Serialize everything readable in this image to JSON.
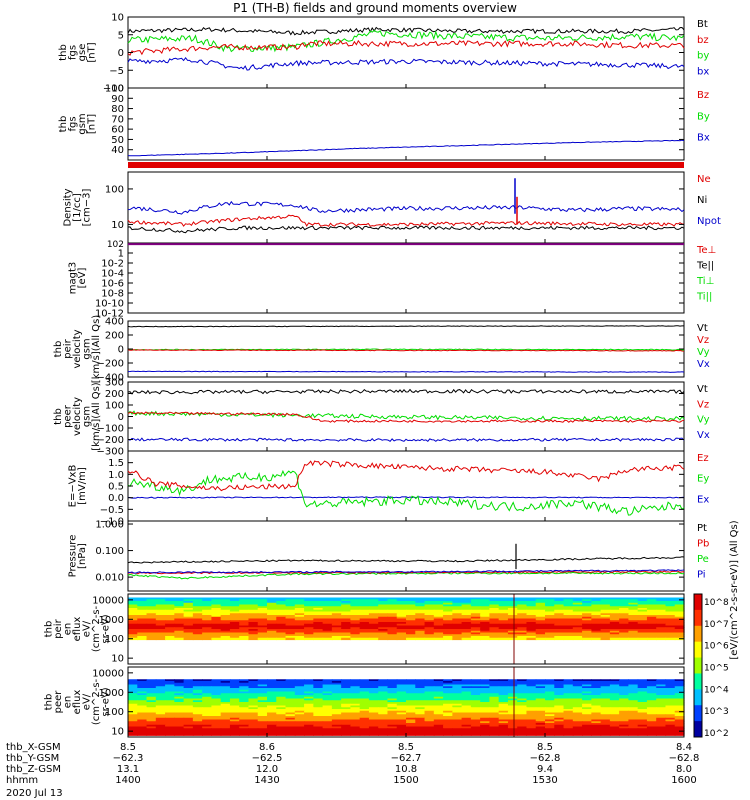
{
  "title": "P1 (TH-B) fields and ground moments overview",
  "colors": {
    "black": "#000000",
    "red": "#e00000",
    "green": "#00dd00",
    "blue": "#0000cc"
  },
  "chart_data": [
    {
      "type": "line",
      "panel": "fgs_gse",
      "ylabel_lines": [
        "thb",
        "fgs",
        "gse",
        "[nT]"
      ],
      "ylim": [
        -10,
        10
      ],
      "yticks": [
        {
          "v": 10,
          "l": "10"
        },
        {
          "v": 5,
          "l": "5"
        },
        {
          "v": 0,
          "l": "0"
        },
        {
          "v": -5,
          "l": "−5"
        },
        {
          "v": -10,
          "l": "−10"
        }
      ],
      "legend": [
        {
          "label": "Bt",
          "color": "black"
        },
        {
          "label": "bz",
          "color": "red"
        },
        {
          "label": "by",
          "color": "green"
        },
        {
          "label": "bx",
          "color": "blue"
        }
      ],
      "series": [
        {
          "color": "black",
          "x": [
            0,
            0.15,
            0.3,
            0.45,
            0.6,
            0.75,
            0.9,
            1
          ],
          "values": [
            6,
            6.5,
            5.5,
            6.5,
            6,
            6,
            6,
            6.5
          ],
          "noise": 0.6
        },
        {
          "color": "green",
          "x": [
            0,
            0.12,
            0.18,
            0.3,
            0.45,
            0.6,
            0.75,
            0.9,
            1
          ],
          "values": [
            3.5,
            4,
            1,
            1.5,
            5.5,
            4.5,
            4,
            4.5,
            4
          ],
          "noise": 1
        },
        {
          "color": "red",
          "x": [
            0,
            0.15,
            0.3,
            0.32,
            0.6,
            0.8,
            0.9,
            1
          ],
          "values": [
            0,
            1.5,
            1.5,
            2.5,
            2.5,
            2.5,
            2,
            2
          ],
          "noise": 0.8
        },
        {
          "color": "blue",
          "x": [
            0,
            0.12,
            0.2,
            0.3,
            0.5,
            0.7,
            0.9,
            1
          ],
          "values": [
            -2.5,
            -2,
            -4.5,
            -3,
            -2.5,
            -3,
            -3.5,
            -4
          ],
          "noise": 0.7
        }
      ]
    },
    {
      "type": "line",
      "panel": "fgs_gsm",
      "ylabel_lines": [
        "thb",
        "fgs",
        "gsm",
        "[nT]"
      ],
      "ylim": [
        30,
        100
      ],
      "yticks": [
        {
          "v": 100,
          "l": "100"
        },
        {
          "v": 90,
          "l": "90"
        },
        {
          "v": 80,
          "l": "80"
        },
        {
          "v": 70,
          "l": "70"
        },
        {
          "v": 60,
          "l": "60"
        },
        {
          "v": 50,
          "l": "50"
        },
        {
          "v": 40,
          "l": "40"
        }
      ],
      "legend": [
        {
          "label": "Bz",
          "color": "red"
        },
        {
          "label": "By",
          "color": "green"
        },
        {
          "label": "Bx",
          "color": "blue"
        }
      ],
      "series": [
        {
          "color": "blue",
          "x": [
            0,
            0.2,
            0.4,
            0.6,
            0.8,
            1
          ],
          "values": [
            34,
            37,
            41,
            44,
            47,
            49
          ],
          "noise": 0.3
        }
      ]
    },
    {
      "type": "line",
      "panel": "density",
      "log": true,
      "ylabel_lines": [
        "Density",
        "[1/cc]",
        "[cm−3]"
      ],
      "ylim": [
        3,
        300
      ],
      "yticks": [
        {
          "v": 100,
          "l": "100"
        },
        {
          "v": 10,
          "l": "10"
        }
      ],
      "legend": [
        {
          "label": "Ne",
          "color": "red"
        },
        {
          "label": "Ni",
          "color": "black"
        },
        {
          "label": "Npot",
          "color": "blue"
        }
      ],
      "series": [
        {
          "color": "blue",
          "x": [
            0,
            0.1,
            0.18,
            0.3,
            0.34,
            0.5,
            0.7,
            0.8,
            0.9,
            1
          ],
          "values": [
            30,
            22,
            40,
            35,
            24,
            28,
            30,
            25,
            28,
            26
          ],
          "noise": 0.12
        },
        {
          "color": "red",
          "x": [
            0,
            0.1,
            0.2,
            0.3,
            0.32,
            0.5,
            0.7,
            0.9,
            1
          ],
          "values": [
            12,
            10,
            14,
            17,
            10,
            10,
            11,
            10,
            10
          ],
          "noise": 0.1
        },
        {
          "color": "black",
          "x": [
            0,
            0.1,
            0.2,
            0.3,
            0.5,
            0.7,
            0.9,
            1
          ],
          "values": [
            8,
            6.5,
            8,
            8,
            8,
            8,
            8,
            8
          ],
          "noise": 0.1
        }
      ]
    },
    {
      "type": "line",
      "panel": "magt3",
      "log": true,
      "ylabel_lines": [
        "magt3",
        "[eV]"
      ],
      "ylim": [
        1e-12,
        100
      ],
      "yticks": [
        {
          "v": 1,
          "l": "1"
        },
        {
          "v": 0.01,
          "l": "10-2"
        },
        {
          "v": 0.0001,
          "l": "10-4"
        },
        {
          "v": 1e-06,
          "l": "10-6"
        },
        {
          "v": 1e-08,
          "l": "10-8"
        },
        {
          "v": 1e-10,
          "l": "10-10"
        },
        {
          "v": 1e-12,
          "l": "10-12"
        }
      ],
      "top_tick_label": "102",
      "legend": [
        {
          "label": "Te⊥",
          "color": "red"
        },
        {
          "label": "Te||",
          "color": "black"
        },
        {
          "label": "Ti⊥",
          "color": "green"
        },
        {
          "label": "Ti||",
          "color": "green"
        }
      ],
      "series": []
    },
    {
      "type": "line",
      "panel": "vel_gsm",
      "ylabel_lines": [
        "thb",
        "peir",
        "velocity",
        "gsm",
        "[km/s](All Qs)"
      ],
      "ylim": [
        -400,
        400
      ],
      "yticks": [
        {
          "v": 400,
          "l": "400"
        },
        {
          "v": 200,
          "l": "200"
        },
        {
          "v": 0,
          "l": "0"
        },
        {
          "v": -200,
          "l": "−200"
        },
        {
          "v": -400,
          "l": "−400"
        }
      ],
      "legend": [
        {
          "label": "Vt",
          "color": "black"
        },
        {
          "label": "Vz",
          "color": "red"
        },
        {
          "label": "Vy",
          "color": "green"
        },
        {
          "label": "Vx",
          "color": "blue"
        }
      ],
      "series": [
        {
          "color": "black",
          "x": [
            0,
            0.5,
            1
          ],
          "values": [
            320,
            325,
            330
          ],
          "noise": 4
        },
        {
          "color": "green",
          "x": [
            0,
            0.5,
            1
          ],
          "values": [
            -10,
            -5,
            -10
          ],
          "noise": 6
        },
        {
          "color": "red",
          "x": [
            0,
            0.5,
            1
          ],
          "values": [
            -15,
            -20,
            -25
          ],
          "noise": 5
        },
        {
          "color": "blue",
          "x": [
            0,
            0.5,
            1
          ],
          "values": [
            -320,
            -325,
            -330
          ],
          "noise": 4
        }
      ]
    },
    {
      "type": "line",
      "panel": "vel_gsm_peer",
      "ylabel_lines": [
        "thb",
        "peer",
        "velocity",
        "gsm",
        "[km/s](All Qs)"
      ],
      "ylim": [
        -300,
        300
      ],
      "yticks": [
        {
          "v": 300,
          "l": "300"
        },
        {
          "v": 200,
          "l": "200"
        },
        {
          "v": 100,
          "l": "100"
        },
        {
          "v": 0,
          "l": "0"
        },
        {
          "v": -100,
          "l": "−100"
        },
        {
          "v": -200,
          "l": "−200"
        },
        {
          "v": -300,
          "l": "−300"
        }
      ],
      "legend": [
        {
          "label": "Vt",
          "color": "black"
        },
        {
          "label": "Vz",
          "color": "red"
        },
        {
          "label": "Vy",
          "color": "green"
        },
        {
          "label": "Vx",
          "color": "blue"
        }
      ],
      "series": [
        {
          "color": "black",
          "x": [
            0,
            0.5,
            1
          ],
          "values": [
            210,
            220,
            215
          ],
          "noise": 15
        },
        {
          "color": "green",
          "x": [
            0,
            0.3,
            0.6,
            1
          ],
          "values": [
            30,
            10,
            -10,
            -20
          ],
          "noise": 18
        },
        {
          "color": "red",
          "x": [
            0,
            0.3,
            0.35,
            1
          ],
          "values": [
            30,
            20,
            -40,
            -40
          ],
          "noise": 10
        },
        {
          "color": "blue",
          "x": [
            0,
            0.5,
            1
          ],
          "values": [
            -200,
            -205,
            -200
          ],
          "noise": 12
        }
      ]
    },
    {
      "type": "line",
      "panel": "efield",
      "ylabel_lines": [
        "E=−VxB",
        "[mV/m]"
      ],
      "ylim": [
        -1,
        2
      ],
      "yticks": [
        {
          "v": 1.5,
          "l": "1.5"
        },
        {
          "v": 1,
          "l": "1.0"
        },
        {
          "v": 0.5,
          "l": "0.5"
        },
        {
          "v": 0,
          "l": "0.0"
        },
        {
          "v": -0.5,
          "l": "−0.5"
        },
        {
          "v": -1,
          "l": "−1.0"
        }
      ],
      "legend": [
        {
          "label": "Ez",
          "color": "red"
        },
        {
          "label": "Ey",
          "color": "green"
        },
        {
          "label": "Ex",
          "color": "blue"
        }
      ],
      "series": [
        {
          "color": "blue",
          "x": [
            0,
            0.5,
            1
          ],
          "values": [
            0,
            0.02,
            0
          ],
          "noise": 0.02
        },
        {
          "color": "green",
          "x": [
            0,
            0.1,
            0.15,
            0.25,
            0.3,
            0.32,
            0.5,
            0.7,
            0.8,
            0.9,
            1
          ],
          "values": [
            0.7,
            0.3,
            0.8,
            0.9,
            1.1,
            -0.3,
            -0.1,
            -0.4,
            -0.2,
            -0.6,
            -0.3
          ],
          "noise": 0.2
        },
        {
          "color": "red",
          "x": [
            0,
            0.05,
            0.15,
            0.3,
            0.32,
            0.5,
            0.75,
            0.85,
            0.9,
            1
          ],
          "values": [
            1.2,
            0.6,
            0.4,
            0.5,
            1.5,
            1.3,
            1.1,
            0.8,
            1.2,
            1.3
          ],
          "noise": 0.12
        }
      ]
    },
    {
      "type": "line",
      "panel": "pressure",
      "log": true,
      "ylabel_lines": [
        "Pressure",
        "[nPa]"
      ],
      "ylim": [
        0.003,
        1.3
      ],
      "yticks": [
        {
          "v": 1,
          "l": "1.000"
        },
        {
          "v": 0.1,
          "l": "0.100"
        },
        {
          "v": 0.01,
          "l": "0.010"
        }
      ],
      "legend": [
        {
          "label": "Pt",
          "color": "black"
        },
        {
          "label": "Pb",
          "color": "red"
        },
        {
          "label": "Pe",
          "color": "green"
        },
        {
          "label": "Pi",
          "color": "blue"
        }
      ],
      "series": [
        {
          "color": "black",
          "x": [
            0,
            0.3,
            0.6,
            1
          ],
          "values": [
            0.035,
            0.042,
            0.04,
            0.055
          ],
          "noise": 0.06
        },
        {
          "color": "green",
          "x": [
            0,
            0.1,
            0.3,
            0.6,
            1
          ],
          "values": [
            0.012,
            0.009,
            0.013,
            0.014,
            0.014
          ],
          "noise": 0.06
        },
        {
          "color": "red",
          "x": [
            0,
            0.5,
            1
          ],
          "values": [
            0.014,
            0.015,
            0.016
          ],
          "noise": 0.05
        },
        {
          "color": "blue",
          "x": [
            0,
            0.5,
            1
          ],
          "values": [
            0.015,
            0.016,
            0.018
          ],
          "noise": 0.05
        }
      ]
    },
    {
      "type": "heatmap",
      "panel": "peir_eflux",
      "log": true,
      "ylabel_lines": [
        "thb",
        "peir",
        "en",
        "eflux",
        "eV/",
        "(cm^2-s-",
        "sr-eV)"
      ],
      "ylim": [
        5,
        20000
      ],
      "yticks": [
        {
          "v": 10000,
          "l": "10000"
        },
        {
          "v": 1000,
          "l": "1000"
        },
        {
          "v": 100,
          "l": "100"
        },
        {
          "v": 10,
          "l": "10"
        }
      ],
      "band_min": 100,
      "band_max": 15000
    },
    {
      "type": "heatmap",
      "panel": "peer_eflux",
      "log": true,
      "ylabel_lines": [
        "thb",
        "peer",
        "en",
        "eflux",
        "eV/",
        "(cm^2-s-",
        "sr-eV)"
      ],
      "ylim": [
        5,
        20000
      ],
      "yticks": [
        {
          "v": 10000,
          "l": "10000"
        },
        {
          "v": 1000,
          "l": "1000"
        },
        {
          "v": 100,
          "l": "100"
        },
        {
          "v": 10,
          "l": "10"
        }
      ],
      "band_min": 7,
      "band_max": 5000
    }
  ],
  "colorbar": {
    "ticks": [
      "10^8",
      "10^7",
      "10^6",
      "10^5",
      "10^4",
      "10^3",
      "10^2"
    ],
    "label": "[eV/(cm^2-s-sr-eV)] (All Qs)"
  },
  "xaxis": {
    "rows": [
      {
        "label": "thb_X-GSM",
        "values": [
          "8.5",
          "8.6",
          "8.5",
          "8.5",
          "8.4"
        ]
      },
      {
        "label": "thb_Y-GSM",
        "values": [
          "−62.3",
          "−62.5",
          "−62.7",
          "−62.8",
          "−62.8"
        ]
      },
      {
        "label": "thb_Z-GSM",
        "values": [
          "13.1",
          "12.0",
          "10.8",
          "9.4",
          "8.0"
        ]
      },
      {
        "label": "hhmm",
        "values": [
          "1400",
          "1430",
          "1500",
          "1530",
          "1600"
        ]
      }
    ],
    "date": "2020 Jul 13"
  }
}
